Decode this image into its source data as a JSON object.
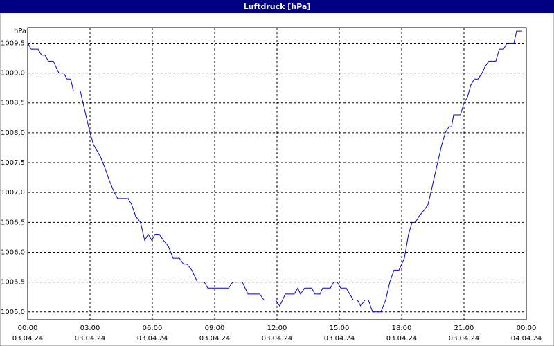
{
  "chart_data": {
    "type": "line",
    "title": "Luftdruck [hPa]",
    "y_unit": "hPa",
    "x": [
      0,
      0.17,
      0.5,
      0.67,
      0.83,
      1,
      1.23,
      1.5,
      1.73,
      1.9,
      2.07,
      2.2,
      2.53,
      2.73,
      3,
      3.17,
      3.5,
      3.73,
      3.93,
      4.17,
      4.33,
      4.83,
      5,
      5.2,
      5.43,
      5.63,
      5.8,
      5.97,
      6.13,
      6.33,
      6.53,
      6.77,
      7,
      7.3,
      7.5,
      7.67,
      7.9,
      8.17,
      8.5,
      8.67,
      9.67,
      9.87,
      10.33,
      10.6,
      11.17,
      11.37,
      11.93,
      12.13,
      12.4,
      12.83,
      13,
      13.13,
      13.33,
      13.67,
      13.83,
      14.07,
      14.2,
      14.57,
      14.73,
      14.9,
      15.07,
      15.33,
      15.5,
      15.67,
      15.87,
      16.03,
      16.23,
      16.4,
      16.6,
      17,
      17.23,
      17.43,
      17.63,
      17.87,
      18.13,
      18.33,
      18.5,
      18.67,
      18.83,
      19.07,
      19.27,
      19.47,
      19.73,
      19.93,
      20.1,
      20.27,
      20.4,
      20.5,
      20.83,
      21,
      21.17,
      21.33,
      21.5,
      21.67,
      21.87,
      22,
      22.2,
      22.53,
      22.7,
      22.9,
      23.07,
      23.27,
      23.4,
      23.53,
      23.8
    ],
    "series": [
      {
        "name": "Luftdruck",
        "color": "#0000cc",
        "values": [
          1009.5,
          1009.4,
          1009.4,
          1009.3,
          1009.3,
          1009.2,
          1009.2,
          1009.0,
          1009.0,
          1008.9,
          1008.9,
          1008.7,
          1008.7,
          1008.4,
          1008.0,
          1007.8,
          1007.6,
          1007.4,
          1007.2,
          1007.0,
          1006.9,
          1006.9,
          1006.8,
          1006.6,
          1006.5,
          1006.2,
          1006.3,
          1006.2,
          1006.3,
          1006.3,
          1006.2,
          1006.1,
          1005.9,
          1005.9,
          1005.8,
          1005.8,
          1005.7,
          1005.5,
          1005.5,
          1005.4,
          1005.4,
          1005.5,
          1005.5,
          1005.3,
          1005.3,
          1005.2,
          1005.2,
          1005.1,
          1005.3,
          1005.3,
          1005.4,
          1005.3,
          1005.4,
          1005.4,
          1005.3,
          1005.3,
          1005.4,
          1005.4,
          1005.5,
          1005.5,
          1005.4,
          1005.4,
          1005.3,
          1005.2,
          1005.2,
          1005.1,
          1005.2,
          1005.2,
          1005.0,
          1005.0,
          1005.2,
          1005.5,
          1005.7,
          1005.7,
          1005.9,
          1006.3,
          1006.5,
          1006.5,
          1006.6,
          1006.7,
          1006.8,
          1007.1,
          1007.5,
          1007.8,
          1008.0,
          1008.1,
          1008.1,
          1008.3,
          1008.3,
          1008.5,
          1008.6,
          1008.8,
          1008.9,
          1008.9,
          1009.0,
          1009.1,
          1009.2,
          1009.2,
          1009.4,
          1009.4,
          1009.5,
          1009.5,
          1009.5,
          1009.7,
          1009.7
        ]
      }
    ],
    "xlim": [
      0,
      24
    ],
    "xticks": [
      {
        "value": 0,
        "label": "00:00",
        "date": "03.04.24"
      },
      {
        "value": 3,
        "label": "03:00",
        "date": "03.04.24"
      },
      {
        "value": 6,
        "label": "06:00",
        "date": "03.04.24"
      },
      {
        "value": 9,
        "label": "09:00",
        "date": "03.04.24"
      },
      {
        "value": 12,
        "label": "12:00",
        "date": "03.04.24"
      },
      {
        "value": 15,
        "label": "15:00",
        "date": "03.04.24"
      },
      {
        "value": 18,
        "label": "18:00",
        "date": "03.04.24"
      },
      {
        "value": 21,
        "label": "21:00",
        "date": "03.04.24"
      },
      {
        "value": 24,
        "label": "00:00",
        "date": "04.04.24"
      }
    ],
    "ylim": [
      1004.87,
      1009.76
    ],
    "yticks": [
      {
        "value": 1005,
        "label": "1005,0"
      },
      {
        "value": 1005.5,
        "label": "1005,5"
      },
      {
        "value": 1006,
        "label": "1006,0"
      },
      {
        "value": 1006.5,
        "label": "1006,5"
      },
      {
        "value": 1007,
        "label": "1007,0"
      },
      {
        "value": 1007.5,
        "label": "1007,5"
      },
      {
        "value": 1008,
        "label": "1008,0"
      },
      {
        "value": 1008.5,
        "label": "1008,5"
      },
      {
        "value": 1009,
        "label": "1009,0"
      },
      {
        "value": 1009.5,
        "label": "1009,5"
      }
    ],
    "grid": true
  }
}
